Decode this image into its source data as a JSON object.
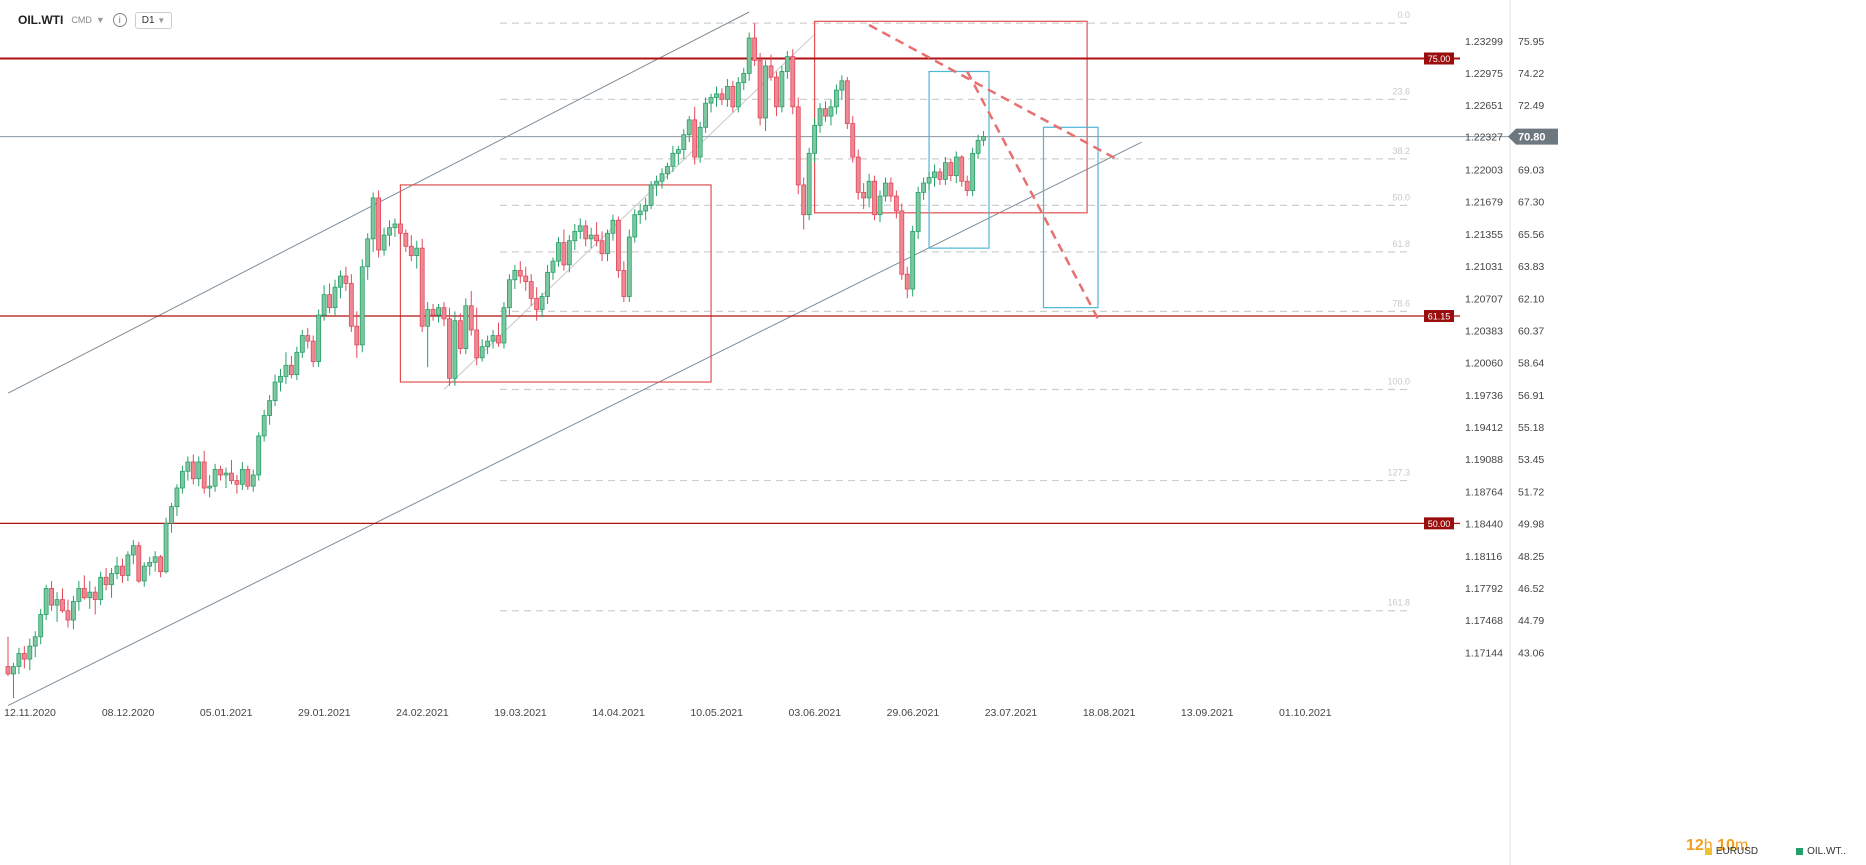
{
  "toolbar": {
    "symbol": "OIL.WTI",
    "market": "CMD",
    "timeframe": "D1",
    "info_icon": "info-icon",
    "chevron_icon": "chevron-down-icon"
  },
  "chart_data": {
    "type": "candlestick",
    "ylim": [
      40.5,
      77.5
    ],
    "right_axis_ticks": [
      {
        "price": 75.95,
        "label": "1.23299"
      },
      {
        "price": 74.22,
        "label": "1.22975"
      },
      {
        "price": 72.49,
        "label": "1.22651"
      },
      {
        "price": 70.8,
        "label": "1.22327"
      },
      {
        "price": 69.03,
        "label": "1.22003"
      },
      {
        "price": 67.3,
        "label": "1.21679"
      },
      {
        "price": 65.56,
        "label": "1.21355"
      },
      {
        "price": 63.83,
        "label": "1.21031"
      },
      {
        "price": 62.1,
        "label": "1.20707"
      },
      {
        "price": 60.37,
        "label": "1.20383"
      },
      {
        "price": 58.64,
        "label": "1.20060"
      },
      {
        "price": 56.91,
        "label": "1.19736"
      },
      {
        "price": 55.18,
        "label": "1.19412"
      },
      {
        "price": 53.45,
        "label": "1.19088"
      },
      {
        "price": 51.72,
        "label": "1.18764"
      },
      {
        "price": 49.98,
        "label": "1.18440"
      },
      {
        "price": 48.25,
        "label": "1.18116"
      },
      {
        "price": 46.52,
        "label": "1.17792"
      },
      {
        "price": 44.79,
        "label": "1.17468"
      },
      {
        "price": 43.06,
        "label": "1.17144"
      }
    ],
    "x_ticks": [
      {
        "i": 0,
        "label": "12.11.2020"
      },
      {
        "i": 18,
        "label": "08.12.2020"
      },
      {
        "i": 36,
        "label": "05.01.2021"
      },
      {
        "i": 54,
        "label": "29.01.2021"
      },
      {
        "i": 72,
        "label": "24.02.2021"
      },
      {
        "i": 90,
        "label": "19.03.2021"
      },
      {
        "i": 108,
        "label": "14.04.2021"
      },
      {
        "i": 126,
        "label": "10.05.2021"
      },
      {
        "i": 144,
        "label": "03.06.2021"
      },
      {
        "i": 162,
        "label": "29.06.2021"
      },
      {
        "i": 180,
        "label": "23.07.2021"
      },
      {
        "i": 198,
        "label": "18.08.2021"
      },
      {
        "i": 216,
        "label": "13.09.2021"
      },
      {
        "i": 234,
        "label": "01.10.2021"
      }
    ],
    "horizontal_levels": [
      {
        "price": 75.0,
        "label": "75.00",
        "color": "#b01010"
      },
      {
        "price": 61.15,
        "label": "61.15",
        "color": "#b01010"
      },
      {
        "price": 50.0,
        "label": "50.00",
        "color": "#b01010"
      }
    ],
    "current_price": {
      "price": 70.8,
      "label": "70.80"
    },
    "fib_levels": [
      {
        "price": 76.9,
        "label": "0.0"
      },
      {
        "price": 72.8,
        "label": "23.6"
      },
      {
        "price": 69.6,
        "label": "38.2"
      },
      {
        "price": 67.1,
        "label": "50.0"
      },
      {
        "price": 64.6,
        "label": "61.8"
      },
      {
        "price": 61.4,
        "label": "78.6"
      },
      {
        "price": 57.2,
        "label": "100.0"
      },
      {
        "price": 52.3,
        "label": "127.3"
      },
      {
        "price": 45.3,
        "label": "161.8"
      }
    ],
    "candles": [
      [
        42.3,
        43.9,
        41.8,
        41.9
      ],
      [
        41.9,
        42.5,
        40.6,
        42.3
      ],
      [
        42.3,
        43.3,
        41.9,
        43.0
      ],
      [
        43.0,
        43.4,
        42.2,
        42.7
      ],
      [
        42.7,
        43.8,
        42.1,
        43.4
      ],
      [
        43.4,
        44.2,
        42.8,
        43.9
      ],
      [
        43.9,
        45.4,
        43.5,
        45.1
      ],
      [
        45.1,
        46.7,
        44.8,
        46.5
      ],
      [
        46.5,
        46.9,
        45.3,
        45.6
      ],
      [
        45.6,
        46.3,
        44.7,
        45.9
      ],
      [
        45.9,
        46.5,
        45.2,
        45.3
      ],
      [
        45.3,
        45.9,
        44.4,
        44.8
      ],
      [
        44.8,
        46.1,
        44.3,
        45.8
      ],
      [
        45.8,
        46.9,
        45.3,
        46.5
      ],
      [
        46.5,
        47.2,
        45.9,
        46.0
      ],
      [
        46.0,
        46.9,
        45.4,
        46.3
      ],
      [
        46.3,
        46.6,
        45.1,
        45.9
      ],
      [
        45.9,
        47.4,
        45.6,
        47.1
      ],
      [
        47.1,
        47.6,
        46.4,
        46.7
      ],
      [
        46.7,
        47.6,
        46.0,
        47.3
      ],
      [
        47.3,
        48.2,
        47.0,
        47.7
      ],
      [
        47.7,
        48.1,
        46.8,
        47.2
      ],
      [
        47.2,
        48.5,
        46.9,
        48.3
      ],
      [
        48.3,
        49.1,
        47.8,
        48.8
      ],
      [
        48.8,
        49.0,
        46.8,
        46.9
      ],
      [
        46.9,
        47.9,
        46.6,
        47.7
      ],
      [
        47.7,
        48.2,
        47.2,
        47.9
      ],
      [
        47.9,
        48.5,
        47.4,
        48.2
      ],
      [
        48.2,
        48.3,
        47.1,
        47.4
      ],
      [
        47.4,
        50.3,
        47.3,
        50.0
      ],
      [
        50.0,
        51.1,
        49.5,
        50.9
      ],
      [
        50.9,
        52.1,
        50.4,
        51.9
      ],
      [
        51.9,
        53.1,
        51.6,
        52.8
      ],
      [
        52.8,
        53.6,
        52.3,
        53.3
      ],
      [
        53.3,
        53.7,
        52.1,
        52.4
      ],
      [
        52.4,
        53.6,
        52.0,
        53.3
      ],
      [
        53.3,
        53.9,
        51.6,
        51.9
      ],
      [
        51.9,
        52.6,
        51.4,
        52.0
      ],
      [
        52.0,
        53.2,
        51.7,
        52.9
      ],
      [
        52.9,
        53.1,
        52.3,
        52.6
      ],
      [
        52.6,
        53.0,
        51.9,
        52.7
      ],
      [
        52.7,
        53.4,
        52.1,
        52.3
      ],
      [
        52.3,
        52.6,
        51.6,
        52.1
      ],
      [
        52.1,
        53.3,
        51.8,
        52.9
      ],
      [
        52.9,
        53.1,
        51.8,
        52.0
      ],
      [
        52.0,
        52.9,
        51.7,
        52.6
      ],
      [
        52.6,
        54.9,
        52.3,
        54.7
      ],
      [
        54.7,
        56.1,
        54.4,
        55.8
      ],
      [
        55.8,
        56.9,
        55.3,
        56.6
      ],
      [
        56.6,
        58.0,
        56.3,
        57.6
      ],
      [
        57.6,
        58.3,
        57.1,
        57.9
      ],
      [
        57.9,
        59.2,
        57.5,
        58.5
      ],
      [
        58.5,
        59.0,
        57.8,
        58.0
      ],
      [
        58.0,
        59.5,
        57.7,
        59.2
      ],
      [
        59.2,
        60.4,
        58.9,
        60.1
      ],
      [
        60.1,
        60.5,
        59.4,
        59.8
      ],
      [
        59.8,
        60.1,
        58.4,
        58.7
      ],
      [
        58.7,
        61.5,
        58.4,
        61.2
      ],
      [
        61.2,
        62.8,
        60.9,
        62.3
      ],
      [
        62.3,
        62.9,
        61.3,
        61.6
      ],
      [
        61.6,
        63.1,
        61.2,
        62.7
      ],
      [
        62.7,
        63.6,
        62.1,
        63.3
      ],
      [
        63.3,
        63.8,
        62.5,
        62.9
      ],
      [
        62.9,
        63.4,
        60.3,
        60.6
      ],
      [
        60.6,
        61.4,
        58.9,
        59.6
      ],
      [
        59.6,
        64.2,
        59.2,
        63.8
      ],
      [
        63.8,
        65.6,
        63.1,
        65.3
      ],
      [
        65.3,
        67.8,
        64.6,
        67.5
      ],
      [
        67.5,
        67.9,
        64.3,
        64.7
      ],
      [
        64.7,
        65.9,
        64.4,
        65.5
      ],
      [
        65.5,
        66.3,
        64.9,
        65.9
      ],
      [
        65.9,
        66.4,
        65.4,
        66.1
      ],
      [
        66.1,
        66.3,
        65.2,
        65.6
      ],
      [
        65.6,
        65.8,
        64.6,
        64.9
      ],
      [
        64.9,
        65.5,
        64.1,
        64.4
      ],
      [
        64.4,
        65.2,
        63.7,
        64.8
      ],
      [
        64.8,
        65.3,
        60.3,
        60.6
      ],
      [
        60.6,
        61.9,
        58.4,
        61.5
      ],
      [
        61.5,
        61.8,
        60.9,
        61.2
      ],
      [
        61.2,
        61.8,
        60.8,
        61.6
      ],
      [
        61.6,
        61.9,
        60.6,
        61.0
      ],
      [
        61.0,
        61.6,
        57.4,
        57.8
      ],
      [
        57.8,
        61.4,
        57.4,
        60.9
      ],
      [
        60.9,
        61.3,
        59.1,
        59.4
      ],
      [
        59.4,
        62.1,
        59.1,
        61.7
      ],
      [
        61.7,
        62.5,
        60.1,
        60.4
      ],
      [
        60.4,
        61.6,
        58.5,
        58.9
      ],
      [
        58.9,
        59.9,
        58.7,
        59.5
      ],
      [
        59.5,
        60.1,
        59.1,
        59.8
      ],
      [
        59.8,
        60.4,
        59.4,
        60.1
      ],
      [
        60.1,
        60.8,
        59.5,
        59.7
      ],
      [
        59.7,
        61.9,
        59.4,
        61.6
      ],
      [
        61.6,
        63.4,
        61.2,
        63.1
      ],
      [
        63.1,
        63.9,
        62.6,
        63.6
      ],
      [
        63.6,
        64.1,
        62.9,
        63.3
      ],
      [
        63.3,
        63.8,
        62.5,
        63.0
      ],
      [
        63.0,
        63.4,
        61.7,
        62.1
      ],
      [
        62.1,
        62.7,
        60.9,
        61.5
      ],
      [
        61.5,
        62.4,
        61.1,
        62.2
      ],
      [
        62.2,
        63.9,
        61.8,
        63.5
      ],
      [
        63.5,
        64.3,
        63.1,
        64.1
      ],
      [
        64.1,
        65.4,
        63.8,
        65.1
      ],
      [
        65.1,
        65.8,
        63.6,
        63.9
      ],
      [
        63.9,
        65.5,
        63.5,
        65.2
      ],
      [
        65.2,
        66.1,
        64.7,
        65.7
      ],
      [
        65.7,
        66.4,
        65.3,
        66.0
      ],
      [
        66.0,
        66.3,
        64.9,
        65.3
      ],
      [
        65.3,
        65.9,
        64.8,
        65.5
      ],
      [
        65.5,
        66.2,
        64.9,
        65.2
      ],
      [
        65.2,
        65.7,
        64.1,
        64.5
      ],
      [
        64.5,
        65.8,
        64.1,
        65.6
      ],
      [
        65.6,
        66.6,
        65.2,
        66.3
      ],
      [
        66.3,
        66.5,
        63.2,
        63.6
      ],
      [
        63.6,
        64.1,
        61.9,
        62.2
      ],
      [
        62.2,
        65.8,
        61.9,
        65.4
      ],
      [
        65.4,
        66.9,
        65.1,
        66.6
      ],
      [
        66.6,
        67.2,
        66.1,
        66.8
      ],
      [
        66.8,
        67.5,
        66.3,
        67.1
      ],
      [
        67.1,
        68.4,
        66.9,
        68.2
      ],
      [
        68.2,
        68.7,
        67.6,
        68.4
      ],
      [
        68.4,
        69.1,
        68.0,
        68.8
      ],
      [
        68.8,
        69.4,
        68.5,
        69.2
      ],
      [
        69.2,
        70.3,
        68.9,
        69.9
      ],
      [
        69.9,
        70.3,
        69.3,
        70.1
      ],
      [
        70.1,
        71.2,
        69.6,
        70.9
      ],
      [
        70.9,
        71.9,
        70.5,
        71.7
      ],
      [
        71.7,
        72.4,
        69.3,
        69.7
      ],
      [
        69.7,
        71.6,
        69.4,
        71.3
      ],
      [
        71.3,
        72.9,
        71.0,
        72.6
      ],
      [
        72.6,
        73.1,
        72.1,
        72.9
      ],
      [
        72.9,
        73.5,
        72.4,
        73.1
      ],
      [
        73.1,
        73.4,
        72.5,
        72.8
      ],
      [
        72.8,
        73.9,
        72.4,
        73.5
      ],
      [
        73.5,
        73.8,
        72.1,
        72.4
      ],
      [
        72.4,
        74.0,
        72.1,
        73.7
      ],
      [
        73.7,
        74.5,
        73.3,
        74.2
      ],
      [
        74.2,
        76.4,
        73.8,
        76.1
      ],
      [
        76.1,
        76.9,
        74.6,
        74.9
      ],
      [
        74.9,
        75.3,
        71.4,
        71.8
      ],
      [
        71.8,
        74.9,
        71.1,
        74.6
      ],
      [
        74.6,
        75.2,
        73.8,
        74.0
      ],
      [
        74.0,
        74.3,
        71.9,
        72.4
      ],
      [
        72.4,
        74.6,
        72.1,
        74.3
      ],
      [
        74.3,
        75.4,
        73.9,
        75.1
      ],
      [
        75.1,
        75.5,
        72.0,
        72.4
      ],
      [
        72.4,
        72.9,
        67.7,
        68.2
      ],
      [
        68.2,
        68.6,
        65.8,
        66.6
      ],
      [
        66.6,
        70.2,
        66.3,
        69.9
      ],
      [
        69.9,
        71.8,
        69.4,
        71.4
      ],
      [
        71.4,
        72.6,
        71.0,
        72.3
      ],
      [
        72.3,
        72.7,
        71.6,
        71.9
      ],
      [
        71.9,
        72.8,
        71.4,
        72.4
      ],
      [
        72.4,
        73.6,
        72.0,
        73.3
      ],
      [
        73.3,
        74.1,
        72.8,
        73.8
      ],
      [
        73.8,
        74.0,
        71.2,
        71.5
      ],
      [
        71.5,
        71.9,
        69.4,
        69.7
      ],
      [
        69.7,
        70.1,
        67.4,
        67.8
      ],
      [
        67.8,
        68.3,
        66.9,
        67.5
      ],
      [
        67.5,
        68.8,
        67.0,
        68.4
      ],
      [
        68.4,
        68.7,
        66.3,
        66.6
      ],
      [
        66.6,
        67.9,
        66.2,
        67.6
      ],
      [
        67.6,
        68.6,
        67.3,
        68.3
      ],
      [
        68.3,
        68.6,
        67.3,
        67.6
      ],
      [
        67.6,
        67.9,
        66.4,
        66.8
      ],
      [
        66.8,
        67.2,
        63.1,
        63.4
      ],
      [
        63.4,
        63.8,
        62.1,
        62.6
      ],
      [
        62.6,
        66.0,
        62.2,
        65.7
      ],
      [
        65.7,
        68.1,
        65.3,
        67.8
      ],
      [
        67.8,
        68.6,
        67.4,
        68.3
      ],
      [
        68.3,
        68.9,
        67.9,
        68.6
      ],
      [
        68.6,
        69.3,
        68.1,
        68.9
      ],
      [
        68.9,
        69.1,
        68.2,
        68.5
      ],
      [
        68.5,
        69.7,
        68.2,
        69.4
      ],
      [
        69.4,
        69.6,
        68.4,
        68.7
      ],
      [
        68.7,
        70.0,
        68.3,
        69.7
      ],
      [
        69.7,
        69.8,
        68.1,
        68.4
      ],
      [
        68.4,
        68.7,
        67.6,
        67.9
      ],
      [
        67.9,
        70.2,
        67.6,
        69.9
      ],
      [
        69.9,
        70.9,
        69.6,
        70.6
      ],
      [
        70.6,
        71.1,
        70.3,
        70.8
      ]
    ],
    "rectangles": [
      {
        "i0": 72,
        "i1": 129,
        "p0": 57.6,
        "p1": 68.2,
        "color": "#e05050"
      },
      {
        "i0": 148,
        "i1": 198,
        "p0": 66.7,
        "p1": 77.0,
        "color": "#e05050"
      },
      {
        "i0": 169,
        "i1": 180,
        "p0": 64.8,
        "p1": 74.3,
        "color": "#4fb6d8"
      },
      {
        "i0": 190,
        "i1": 200,
        "p0": 61.6,
        "p1": 71.3,
        "color": "#4fb6d8"
      }
    ],
    "dashed_trendlines": [
      {
        "i0": 158,
        "p0": 76.8,
        "i1": 204,
        "p1": 69.5
      },
      {
        "i0": 176,
        "p0": 74.3,
        "i1": 200,
        "p1": 61.0
      }
    ],
    "channel_lines": [
      {
        "i0": 0,
        "p0": 57.0,
        "i1": 136,
        "p1": 77.5
      },
      {
        "i0": 0,
        "p0": 40.2,
        "i1": 208,
        "p1": 70.5
      },
      {
        "i0": 80,
        "p0": 57.2,
        "i1": 148,
        "p1": 76.3
      }
    ]
  },
  "countdown": {
    "hours": "12",
    "h": "h",
    "minutes": "10",
    "m": "m"
  },
  "legend": [
    {
      "label": "EURUSD",
      "color": "#f0c030"
    },
    {
      "label": "OIL.WT..",
      "color": "#26a069"
    }
  ]
}
